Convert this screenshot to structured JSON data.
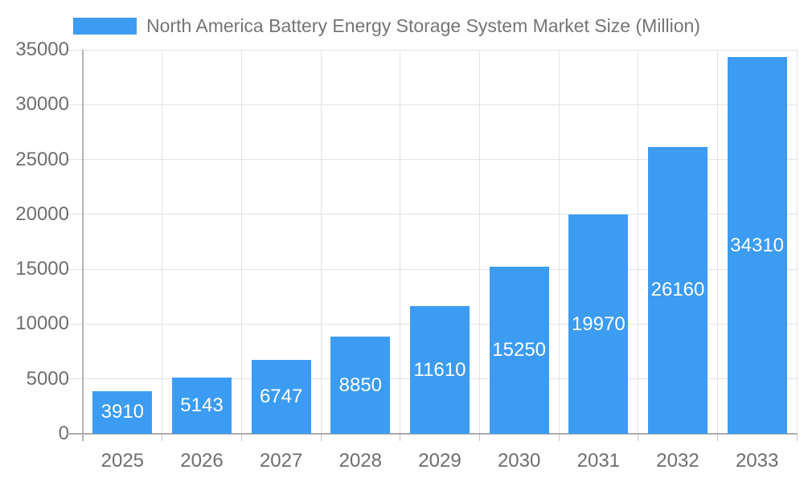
{
  "legend": {
    "label": "North America Battery Energy Storage System Market Size (Million)"
  },
  "chart_data": {
    "type": "bar",
    "title": "North America Battery Energy Storage System Market Size (Million)",
    "categories": [
      "2025",
      "2026",
      "2027",
      "2028",
      "2029",
      "2030",
      "2031",
      "2032",
      "2033"
    ],
    "values": [
      3910,
      5143,
      6747,
      8850,
      11610,
      15250,
      19970,
      26160,
      34310
    ],
    "xlabel": "",
    "ylabel": "",
    "ylim": [
      0,
      35000
    ],
    "ytick_step": 5000,
    "yticks": [
      0,
      5000,
      10000,
      15000,
      20000,
      25000,
      30000,
      35000
    ],
    "grid": true,
    "legend_position": "top-left",
    "value_label_position": "inside-center"
  },
  "colors": {
    "bar": "#3c9cf4",
    "value_label": "#ffffff",
    "grid_line": "#e2e2e2",
    "y_axis_line": "#b3b3b3",
    "x_axis_line": "#acacac",
    "tick_mark": "#c6c6c6",
    "tick_text": "#6e6e6e",
    "title_text": "#757575",
    "background": "#ffffff"
  }
}
